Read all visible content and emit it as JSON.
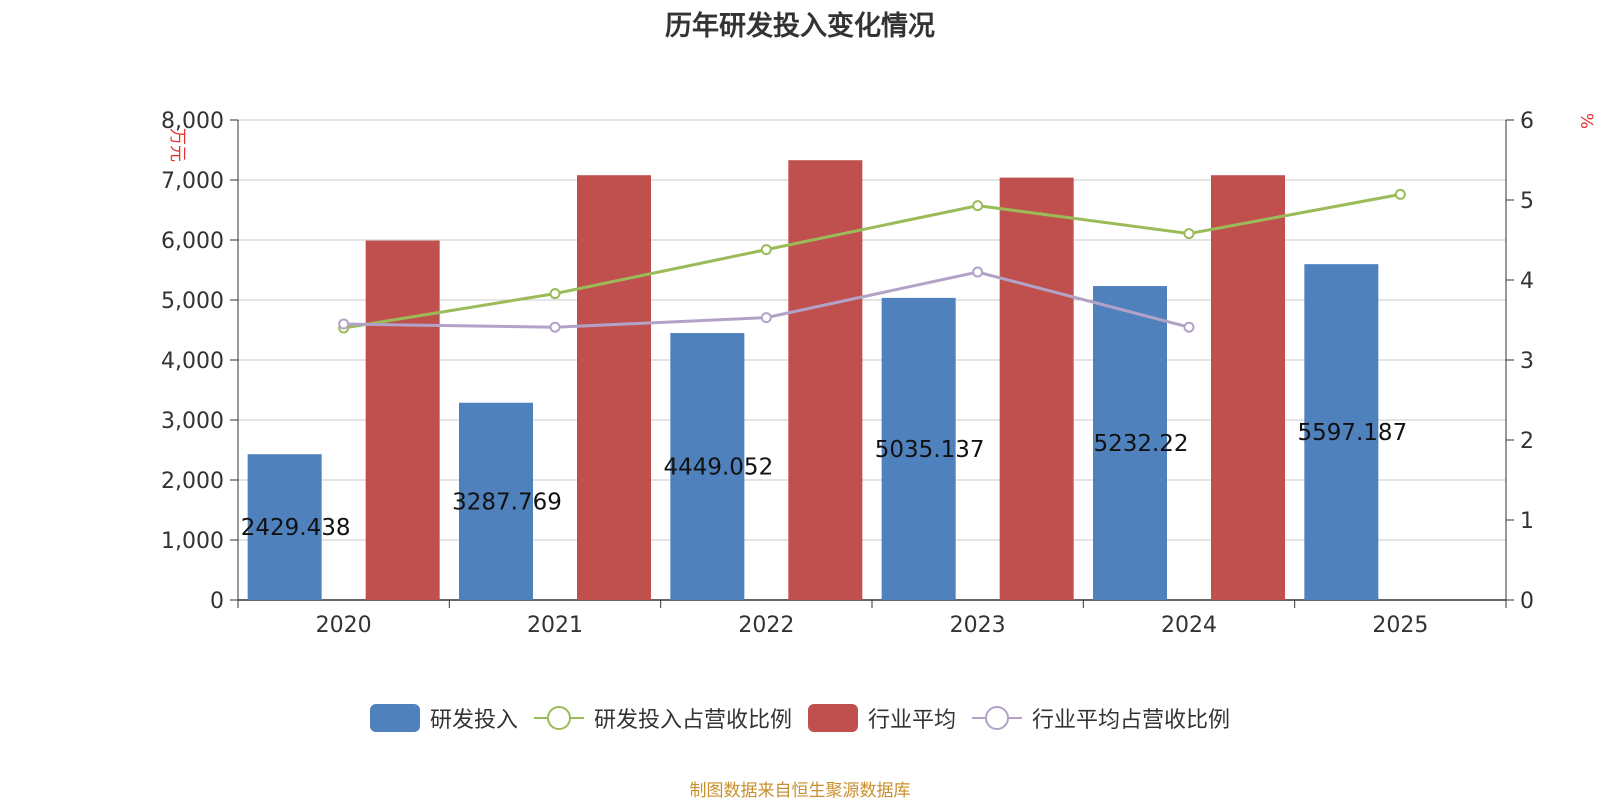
{
  "chart_data": {
    "type": "bar",
    "title": "历年研发投入变化情况",
    "categories": [
      "2020",
      "2021",
      "2022",
      "2023",
      "2024",
      "2025"
    ],
    "y_left": {
      "label": "万元",
      "ticks": [
        "0",
        "1,000",
        "2,000",
        "3,000",
        "4,000",
        "5,000",
        "6,000",
        "7,000",
        "8,000"
      ],
      "ylim": [
        0,
        8000
      ]
    },
    "y_right": {
      "label": "%",
      "ticks": [
        "0",
        "1",
        "2",
        "3",
        "4",
        "5",
        "6"
      ],
      "ylim": [
        0,
        6
      ]
    },
    "series": [
      {
        "name": "研发投入",
        "type": "bar",
        "axis": "left",
        "color": "#4f81bd",
        "values": [
          2429.438,
          3287.769,
          4449.052,
          5035.137,
          5232.22,
          5597.187
        ],
        "labels": [
          "2429.438",
          "3287.769",
          "4449.052",
          "5035.137",
          "5232.22",
          "5597.187"
        ]
      },
      {
        "name": "研发投入占营收比例",
        "type": "line",
        "axis": "right",
        "color": "#9bbb59",
        "values": [
          3.4,
          3.83,
          4.38,
          4.93,
          4.58,
          5.07
        ]
      },
      {
        "name": "行业平均",
        "type": "bar",
        "axis": "left",
        "color": "#c0504d",
        "values": [
          5990,
          7080,
          7330,
          7040,
          7080,
          null
        ]
      },
      {
        "name": "行业平均占营收比例",
        "type": "line",
        "axis": "right",
        "color": "#b3a2c7",
        "values": [
          3.45,
          3.41,
          3.53,
          4.1,
          3.41,
          null
        ]
      }
    ],
    "legend_position": "bottom"
  },
  "source_note": "制图数据来自恒生聚源数据库"
}
